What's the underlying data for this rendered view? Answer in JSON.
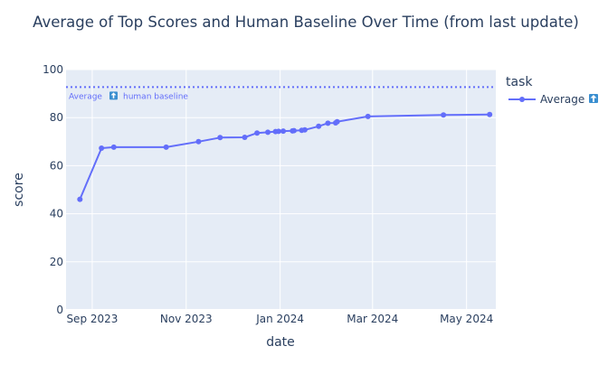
{
  "chart_data": {
    "type": "line",
    "title": "Average of Top Scores and Human Baseline Over Time (from last update)",
    "xlabel": "date",
    "ylabel": "score",
    "ylim": [
      0,
      100
    ],
    "yticks": [
      0,
      20,
      40,
      60,
      80,
      100
    ],
    "xlim": [
      "2023-08-15",
      "2024-05-20"
    ],
    "xticks": [
      {
        "date": "2023-09-01",
        "label": "Sep 2023"
      },
      {
        "date": "2023-11-01",
        "label": "Nov 2023"
      },
      {
        "date": "2024-01-01",
        "label": "Jan 2024"
      },
      {
        "date": "2024-03-01",
        "label": "Mar 2024"
      },
      {
        "date": "2024-05-01",
        "label": "May 2024"
      }
    ],
    "grid": true,
    "legend": {
      "title": "task",
      "position": "right",
      "entries": [
        "Average"
      ]
    },
    "series": [
      {
        "name": "Average",
        "color": "#636efa",
        "points": [
          {
            "x": "2023-08-24",
            "y": 46.0
          },
          {
            "x": "2023-09-07",
            "y": 67.3
          },
          {
            "x": "2023-09-15",
            "y": 67.7
          },
          {
            "x": "2023-10-19",
            "y": 67.7
          },
          {
            "x": "2023-11-09",
            "y": 70.0
          },
          {
            "x": "2023-11-23",
            "y": 71.7
          },
          {
            "x": "2023-12-09",
            "y": 71.8
          },
          {
            "x": "2023-12-17",
            "y": 73.6
          },
          {
            "x": "2023-12-24",
            "y": 73.9
          },
          {
            "x": "2023-12-29",
            "y": 74.2
          },
          {
            "x": "2023-12-31",
            "y": 74.3
          },
          {
            "x": "2024-01-03",
            "y": 74.4
          },
          {
            "x": "2024-01-09",
            "y": 74.5
          },
          {
            "x": "2024-01-10",
            "y": 74.6
          },
          {
            "x": "2024-01-15",
            "y": 74.7
          },
          {
            "x": "2024-01-17",
            "y": 74.9
          },
          {
            "x": "2024-01-26",
            "y": 76.4
          },
          {
            "x": "2024-02-01",
            "y": 77.7
          },
          {
            "x": "2024-02-06",
            "y": 77.8
          },
          {
            "x": "2024-02-07",
            "y": 78.3
          },
          {
            "x": "2024-02-27",
            "y": 80.5
          },
          {
            "x": "2024-04-16",
            "y": 81.1
          },
          {
            "x": "2024-05-16",
            "y": 81.3
          }
        ]
      }
    ],
    "baseline": {
      "y": 92.7,
      "label": "Average",
      "label_suffix": "human baseline",
      "color": "#636efa"
    }
  }
}
